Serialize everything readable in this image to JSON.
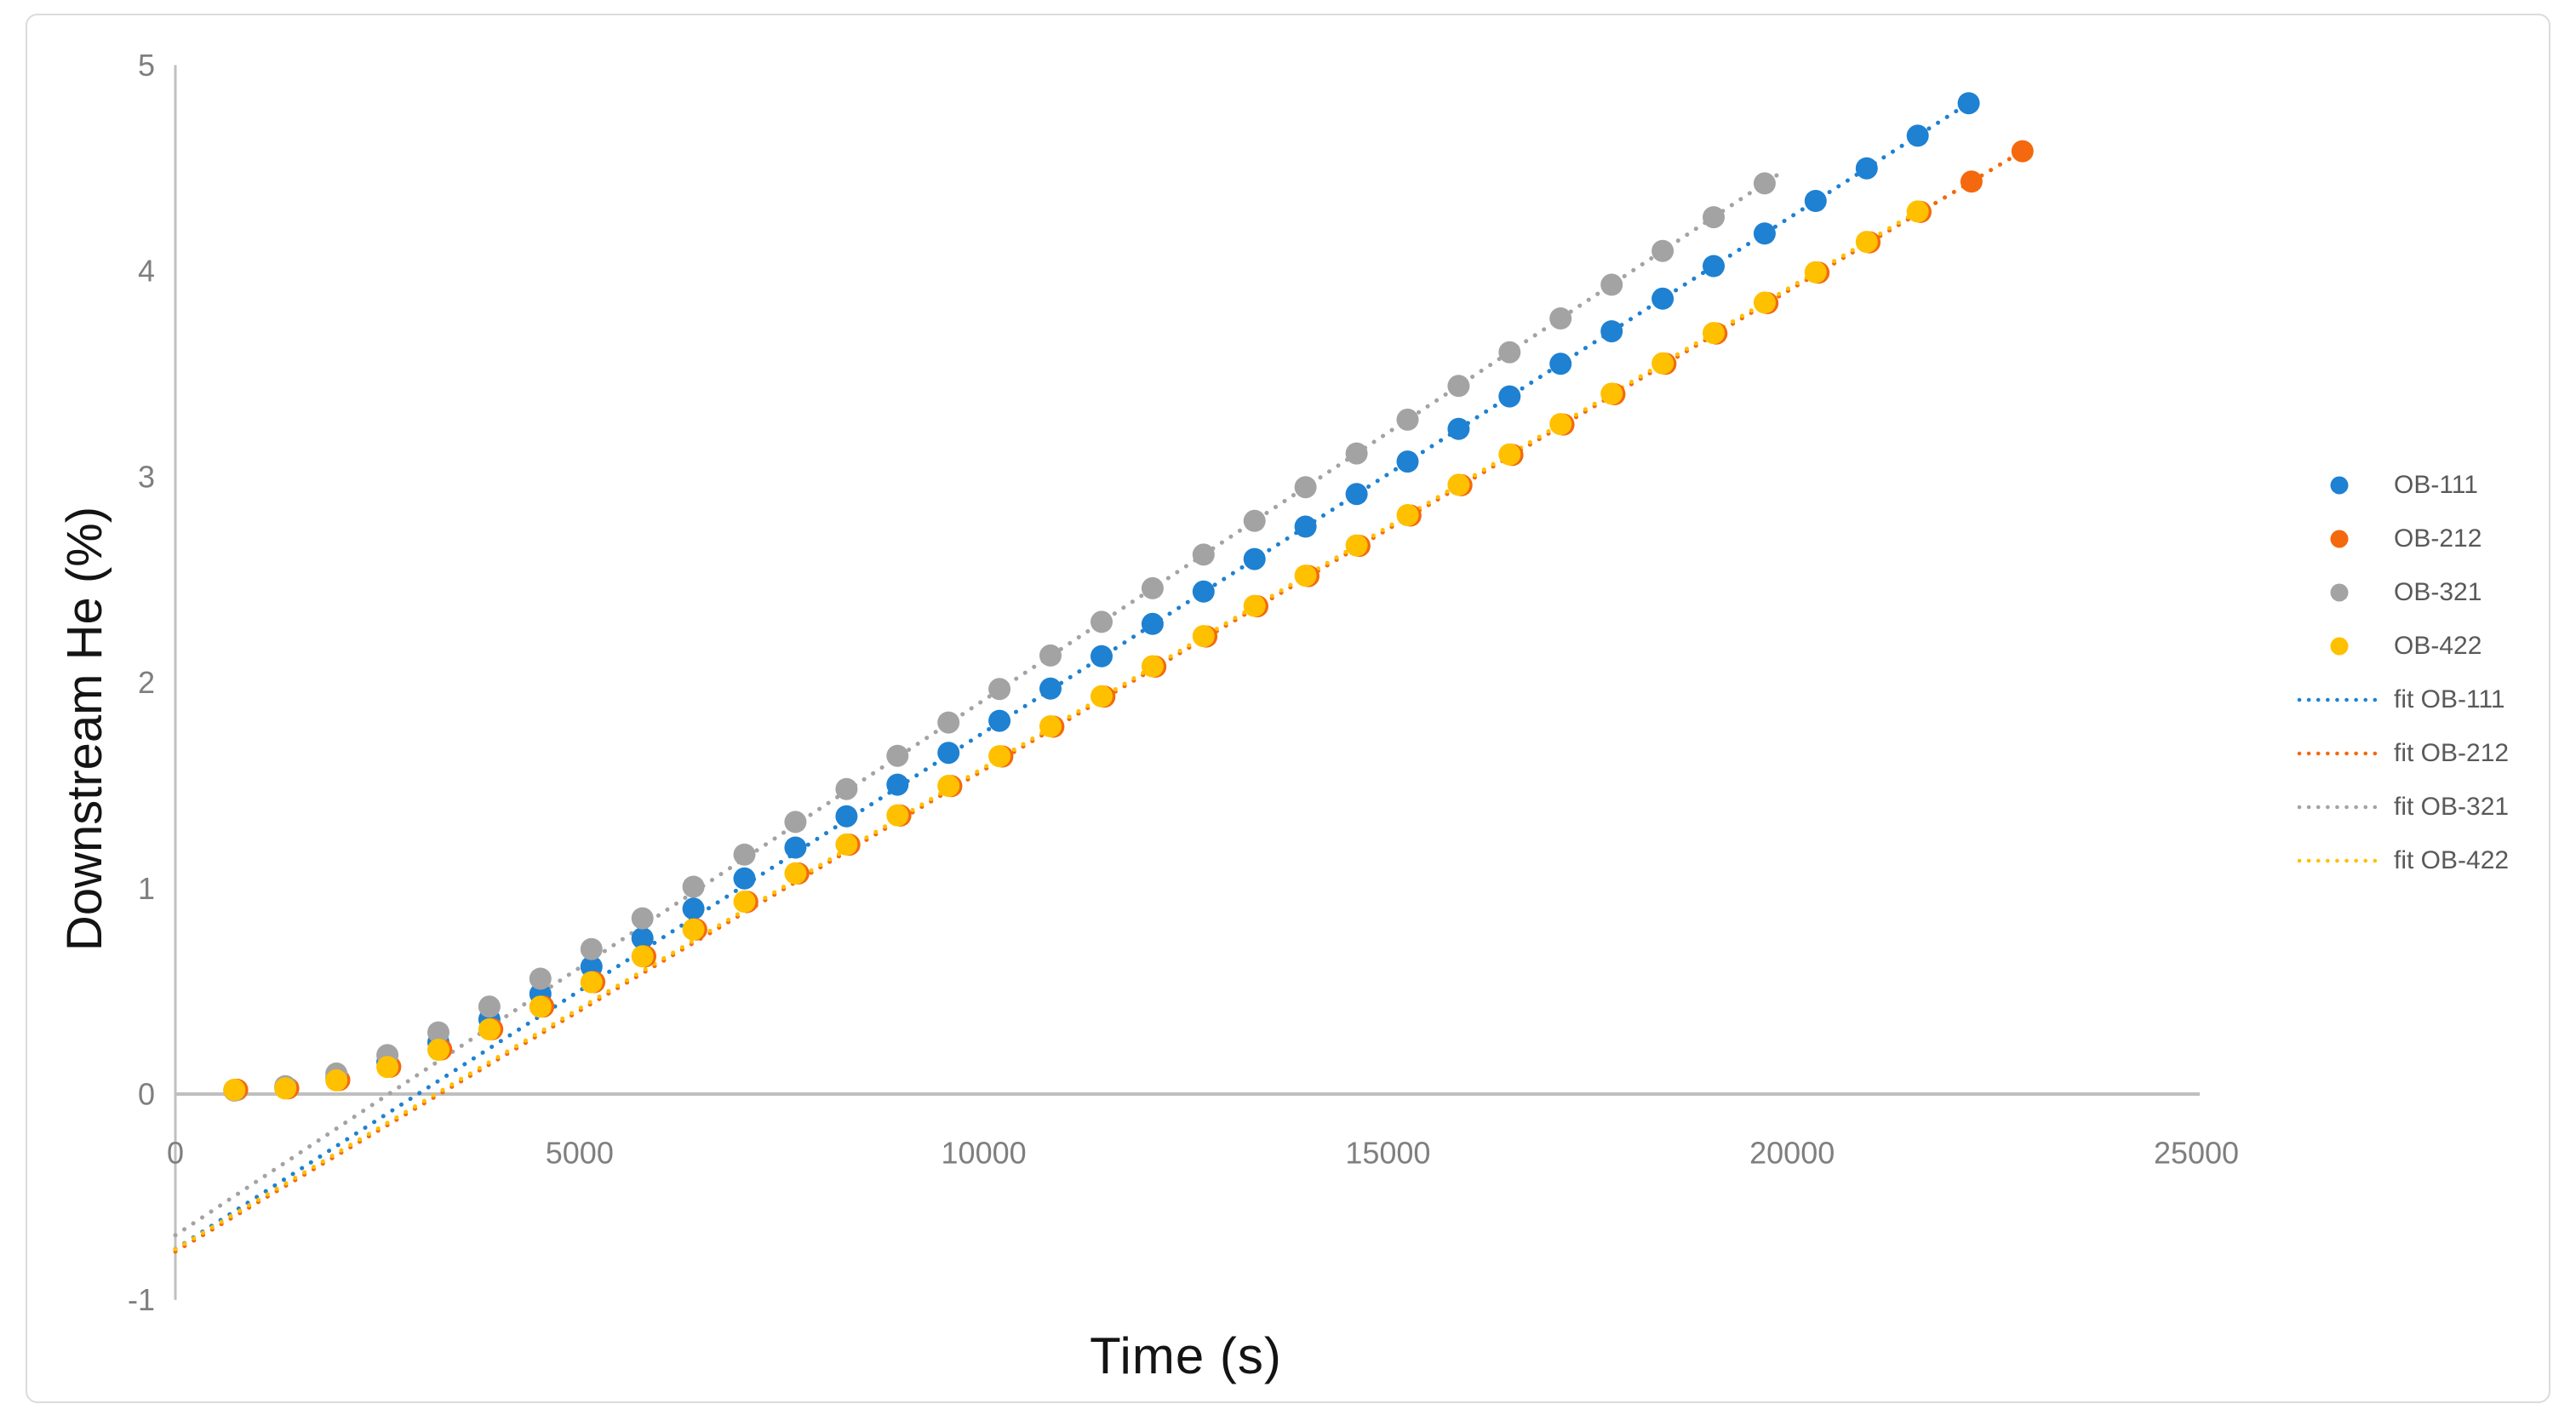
{
  "chart_data": {
    "type": "scatter",
    "title": "",
    "xlabel": "Time (s)",
    "ylabel": "Downstream He (%)",
    "xlim": [
      0,
      25000
    ],
    "ylim": [
      -1,
      5
    ],
    "x_ticks": [
      "0",
      "5000",
      "10000",
      "15000",
      "20000",
      "25000"
    ],
    "y_ticks": [
      "5",
      "4",
      "3",
      "2",
      "1",
      "0",
      "-1"
    ],
    "grid": false,
    "legend_position": "right-center",
    "colors": {
      "axis_line": "#bfbfbf",
      "tick_label": "#7f7f7f",
      "axis_title": "#141414",
      "legend_text": "#595959"
    },
    "point_model": "v(t) = slope*(t - time_lag) + slope*time_lag*A*exp(-k*t/time_lag), clamped to >= 0.012 ; points every t_step seconds starting at t_start",
    "series": [
      {
        "name": "OB-111",
        "color": "#1e81d2",
        "marker": "circle",
        "t_start": 730,
        "t_step": 631,
        "n_points": 35,
        "slope_per_s": 0.000251,
        "time_lag_s": 3000,
        "A": 1.09,
        "k": 1.36,
        "last_point": {
          "t": 22184,
          "v": 4.82
        }
      },
      {
        "name": "OB-212",
        "color": "#f4690d",
        "marker": "circle",
        "t_start": 765,
        "t_step": 631,
        "n_points": 36,
        "slope_per_s": 0.000234,
        "time_lag_s": 3270,
        "A": 1.09,
        "k": 1.36,
        "last_point": {
          "t": 22850,
          "v": 4.58
        }
      },
      {
        "name": "OB-321",
        "color": "#a3a3a3",
        "marker": "circle",
        "t_start": 730,
        "t_step": 631,
        "n_points": 31,
        "slope_per_s": 0.00026,
        "time_lag_s": 2640,
        "A": 1.09,
        "k": 1.36,
        "last_point": {
          "t": 19660,
          "v": 4.43
        }
      },
      {
        "name": "OB-422",
        "color": "#ffc000",
        "marker": "circle",
        "t_start": 730,
        "t_step": 631,
        "n_points": 34,
        "slope_per_s": 0.000234,
        "time_lag_s": 3225,
        "A": 1.09,
        "k": 1.36,
        "last_point": {
          "t": 21553,
          "v": 4.29
        }
      }
    ],
    "fits": [
      {
        "name": "fit OB-111",
        "color": "#1e81d2",
        "style": "dotted",
        "slope_per_s": 0.000251,
        "intercept": -0.753,
        "t_start": 0,
        "t_end": 22184
      },
      {
        "name": "fit OB-212",
        "color": "#f4690d",
        "style": "dotted",
        "slope_per_s": 0.000234,
        "intercept": -0.765,
        "t_start": 0,
        "t_end": 22850
      },
      {
        "name": "fit OB-321",
        "color": "#a3a3a3",
        "style": "dotted",
        "slope_per_s": 0.00026,
        "intercept": -0.686,
        "t_start": 0,
        "t_end": 19850
      },
      {
        "name": "fit OB-422",
        "color": "#ffc000",
        "style": "dotted",
        "slope_per_s": 0.000234,
        "intercept": -0.754,
        "t_start": 0,
        "t_end": 21553
      }
    ]
  }
}
